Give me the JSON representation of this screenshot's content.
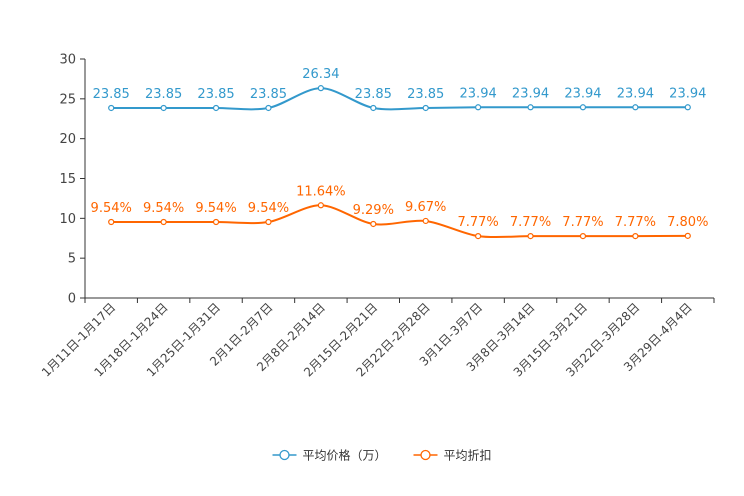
{
  "chart_data": {
    "type": "line",
    "title": "",
    "xlabel": "",
    "ylabel": "",
    "ylim": [
      0,
      30
    ],
    "yticks": [
      0,
      5,
      10,
      15,
      20,
      25,
      30
    ],
    "grid": false,
    "legend_position": "bottom-center",
    "categories": [
      "1月11日-1月17日",
      "1月18日-1月24日",
      "1月25日-1月31日",
      "2月1日-2月7日",
      "2月8日-2月14日",
      "2月15日-2月21日",
      "2月22日-2月28日",
      "3月1日-3月7日",
      "3月8日-3月14日",
      "3月15日-3月21日",
      "3月22日-3月28日",
      "3月29日-4月4日"
    ],
    "series": [
      {
        "name": "平均价格（万）",
        "color": "#3399cc",
        "values": [
          23.85,
          23.85,
          23.85,
          23.85,
          26.34,
          23.85,
          23.85,
          23.94,
          23.94,
          23.94,
          23.94,
          23.94
        ],
        "labels": [
          "23.85",
          "23.85",
          "23.85",
          "23.85",
          "26.34",
          "23.85",
          "23.85",
          "23.94",
          "23.94",
          "23.94",
          "23.94",
          "23.94"
        ]
      },
      {
        "name": "平均折扣",
        "color": "#ff6600",
        "values": [
          9.54,
          9.54,
          9.54,
          9.54,
          11.64,
          9.29,
          9.67,
          7.77,
          7.77,
          7.77,
          7.77,
          7.8
        ],
        "labels": [
          "9.54%",
          "9.54%",
          "9.54%",
          "9.54%",
          "11.64%",
          "9.29%",
          "9.67%",
          "7.77%",
          "7.77%",
          "7.77%",
          "7.77%",
          "7.80%"
        ]
      }
    ]
  }
}
